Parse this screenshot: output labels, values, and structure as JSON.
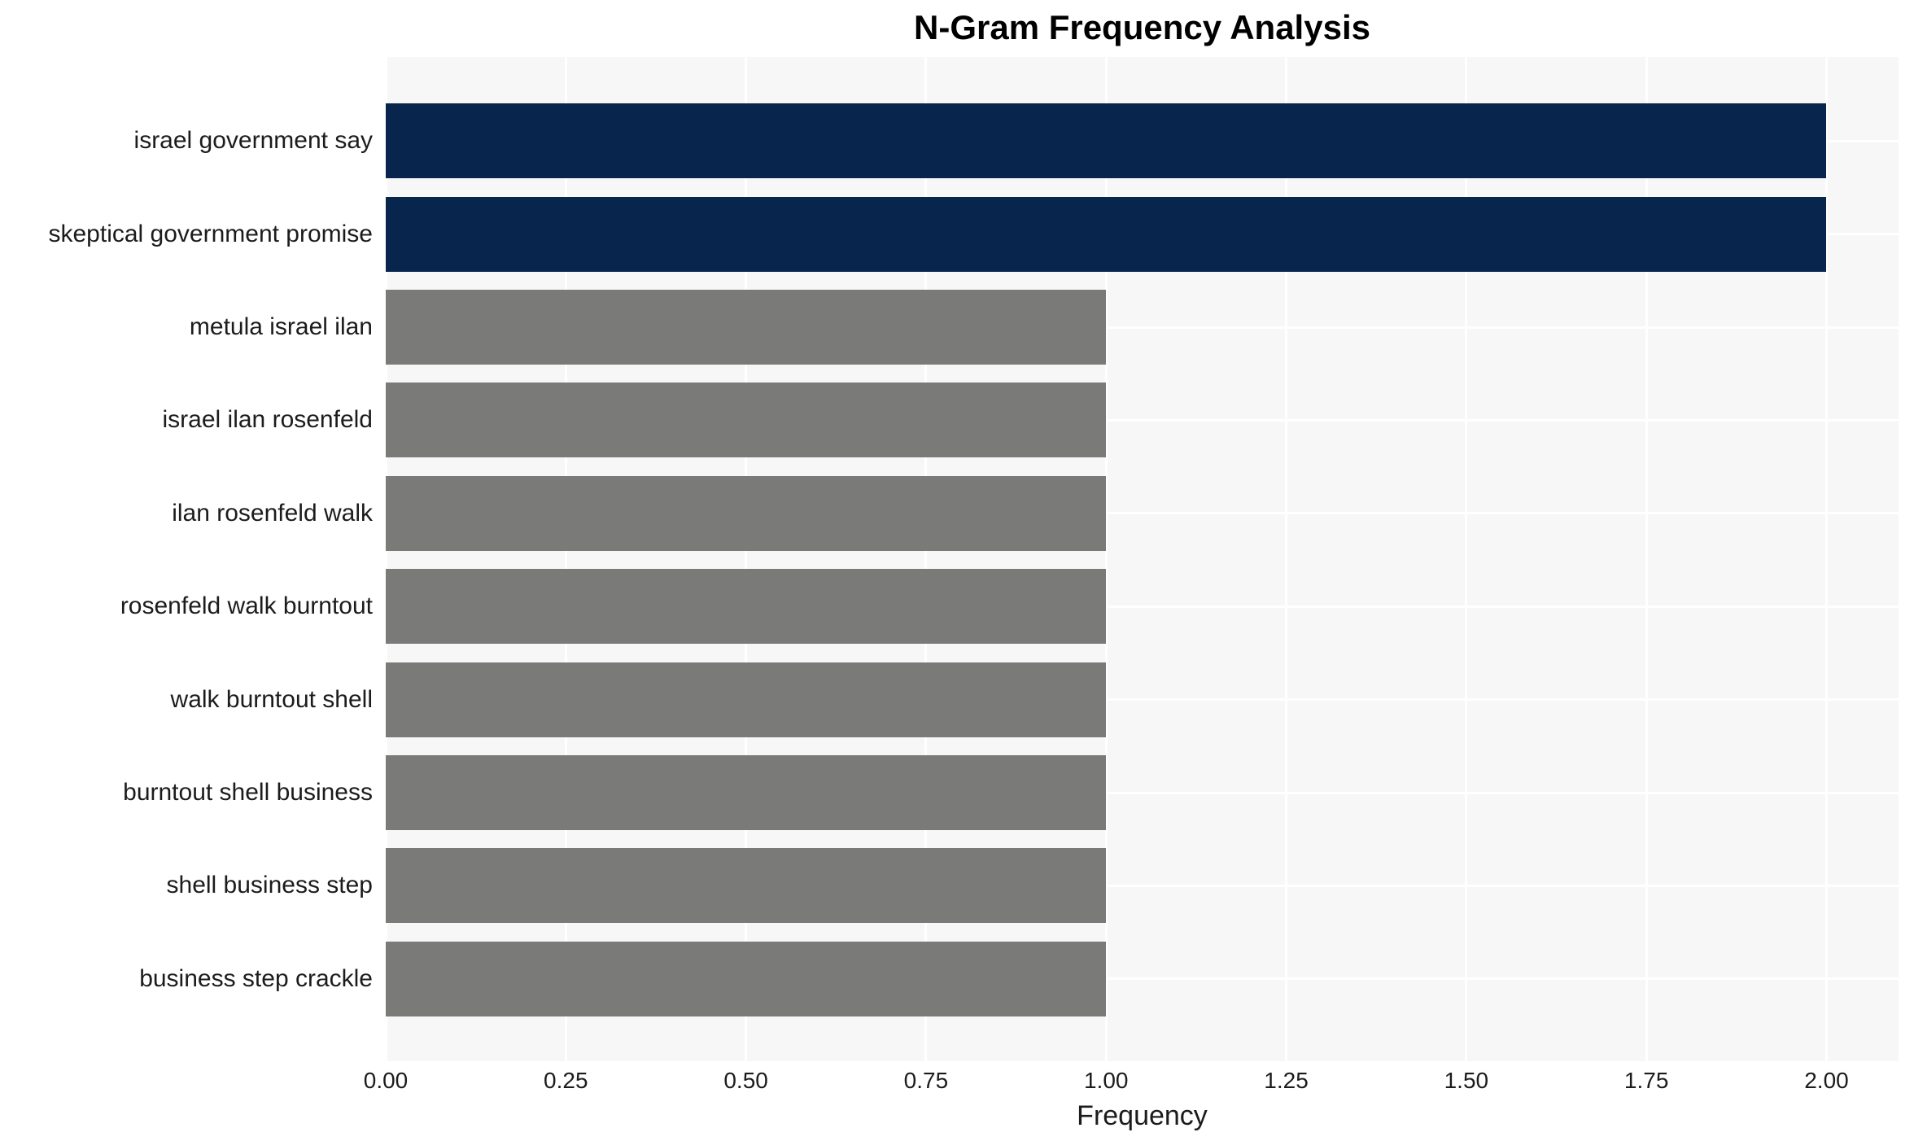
{
  "chart_data": {
    "type": "bar",
    "orientation": "horizontal",
    "title": "N-Gram Frequency Analysis",
    "xlabel": "Frequency",
    "ylabel": "",
    "categories": [
      "israel government say",
      "skeptical government promise",
      "metula israel ilan",
      "israel ilan rosenfeld",
      "ilan rosenfeld walk",
      "rosenfeld walk burntout",
      "walk burntout shell",
      "burntout shell business",
      "shell business step",
      "business step crackle"
    ],
    "values": [
      2,
      2,
      1,
      1,
      1,
      1,
      1,
      1,
      1,
      1
    ],
    "bar_colors": [
      "#07254d",
      "#07254d",
      "#7a7a78",
      "#7a7a78",
      "#7a7a78",
      "#7a7a78",
      "#7a7a78",
      "#7a7a78",
      "#7a7a78",
      "#7a7a78"
    ],
    "highlight_color": "#07254d",
    "default_color": "#7a7a78",
    "xlim": [
      0,
      2.1
    ],
    "xticks": [
      0,
      0.25,
      0.5,
      0.75,
      1.0,
      1.25,
      1.5,
      1.75,
      2.0
    ],
    "xtick_labels": [
      "0.00",
      "0.25",
      "0.50",
      "0.75",
      "1.00",
      "1.25",
      "1.50",
      "1.75",
      "2.00"
    ],
    "grid": true,
    "grid_color": "#ffffff",
    "panel_bg": "#f7f7f7",
    "legend": false
  }
}
